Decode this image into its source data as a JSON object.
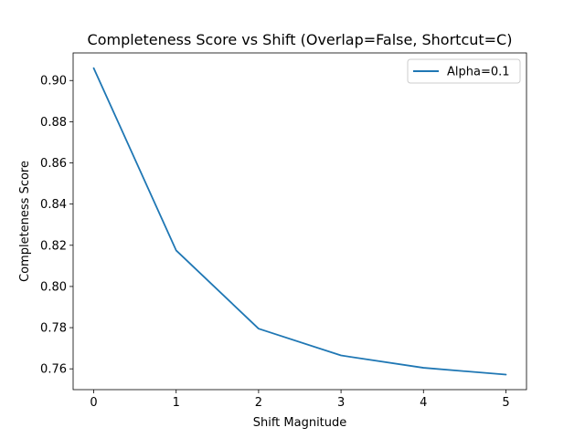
{
  "chart_data": {
    "type": "line",
    "title": "Completeness Score vs Shift (Overlap=False, Shortcut=C)",
    "xlabel": "Shift Magnitude",
    "ylabel": "Completeness Score",
    "x": [
      0,
      1,
      2,
      3,
      4,
      5
    ],
    "series": [
      {
        "name": "Alpha=0.1",
        "values": [
          0.906,
          0.8175,
          0.7795,
          0.7665,
          0.7605,
          0.7572
        ],
        "color": "#1f77b4"
      }
    ],
    "xlim": [
      -0.25,
      5.25
    ],
    "ylim": [
      0.7499,
      0.9134
    ],
    "xticks": [
      0,
      1,
      2,
      3,
      4,
      5
    ],
    "yticks": [
      0.76,
      0.78,
      0.8,
      0.82,
      0.84,
      0.86,
      0.88,
      0.9
    ],
    "ytick_labels": [
      "0.76",
      "0.78",
      "0.80",
      "0.82",
      "0.84",
      "0.86",
      "0.88",
      "0.90"
    ],
    "grid": false,
    "legend_position": "upper-right"
  }
}
